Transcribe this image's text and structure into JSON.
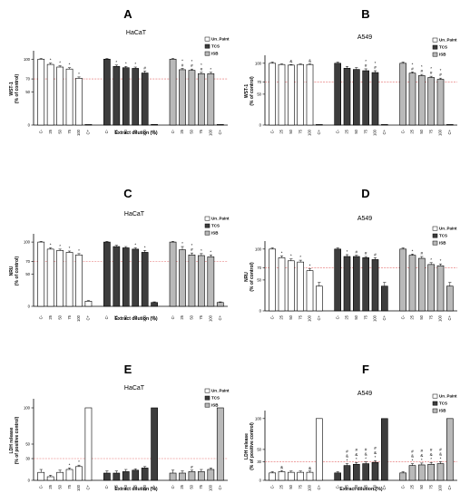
{
  "colors": {
    "Un_Paint": "#ffffff",
    "TCS": "#3d3d3d",
    "ISB": "#b9b9b9",
    "threshold_line": "#e36a6a",
    "axis": "#000000"
  },
  "chart_data": [
    {
      "type": "bar",
      "letter": "A",
      "title": "HaCaT",
      "ylabel_lines": [
        "WST-1",
        "(% of control)"
      ],
      "xlabel": "Extract dilution (%)",
      "categories": [
        "C-",
        "25",
        "50",
        "75",
        "100",
        "C+"
      ],
      "yticks": [
        0,
        50,
        70,
        100
      ],
      "ylim": [
        0,
        110
      ],
      "threshold": 70,
      "legend": [
        "Un_Paint",
        "TCS",
        "ISB"
      ],
      "series": [
        {
          "name": "Un_Paint",
          "values": [
            100,
            92,
            88,
            85,
            71,
            1
          ],
          "errors": [
            1,
            2,
            2,
            2,
            2,
            0
          ],
          "marks": [
            "",
            "*",
            "*",
            "*",
            "*",
            ""
          ]
        },
        {
          "name": "TCS",
          "values": [
            100,
            89,
            87,
            86,
            79,
            1
          ],
          "errors": [
            1,
            2,
            2,
            2,
            3,
            0
          ],
          "marks": [
            "",
            "*",
            "*",
            "*",
            "#",
            ""
          ]
        },
        {
          "name": "ISB",
          "values": [
            100,
            84,
            83,
            78,
            78,
            1
          ],
          "errors": [
            1,
            2,
            2,
            2,
            2,
            0
          ],
          "marks": [
            "",
            "*\n#",
            "*\n#",
            "*\n#",
            "*",
            ""
          ]
        }
      ]
    },
    {
      "type": "bar",
      "letter": "B",
      "title": "A549",
      "ylabel_lines": [
        "WST-1",
        "(% of control)"
      ],
      "xlabel": "",
      "categories": [
        "C-",
        "25",
        "50",
        "75",
        "100",
        "C+"
      ],
      "yticks": [
        0,
        50,
        70,
        100
      ],
      "ylim": [
        0,
        110
      ],
      "threshold": 70,
      "legend": [
        "Un_Paint",
        "TCS",
        "ISB"
      ],
      "series": [
        {
          "name": "Un_Paint",
          "values": [
            100,
            98,
            97,
            98,
            98,
            0
          ],
          "errors": [
            2,
            1,
            1,
            1,
            1,
            0
          ],
          "marks": [
            "",
            "",
            "&",
            "",
            "&",
            ""
          ]
        },
        {
          "name": "TCS",
          "values": [
            100,
            92,
            90,
            88,
            85,
            0
          ],
          "errors": [
            2,
            3,
            3,
            3,
            3,
            0
          ],
          "marks": [
            "",
            "",
            "",
            "*\n#",
            "*\n#",
            ""
          ]
        },
        {
          "name": "ISB",
          "values": [
            100,
            84,
            80,
            77,
            74,
            0
          ],
          "errors": [
            2,
            2,
            2,
            2,
            2,
            0
          ],
          "marks": [
            "",
            "*\n#",
            "*\n#",
            "*\n#",
            "*\n#",
            ""
          ]
        }
      ]
    },
    {
      "type": "bar",
      "letter": "C",
      "title": "HaCaT",
      "ylabel_lines": [
        "NRU",
        "(% of control)"
      ],
      "xlabel": "Extract dilution (%)",
      "categories": [
        "C-",
        "25",
        "50",
        "75",
        "100",
        "C+"
      ],
      "yticks": [
        0,
        50,
        70,
        100
      ],
      "ylim": [
        0,
        110
      ],
      "threshold": 70,
      "legend": [
        "Un_Paint",
        "TCS",
        "ISB"
      ],
      "series": [
        {
          "name": "Un_Paint",
          "values": [
            100,
            89,
            87,
            84,
            80,
            8
          ],
          "errors": [
            1,
            2,
            2,
            2,
            2,
            1
          ],
          "marks": [
            "",
            "*",
            "*",
            "*",
            "*",
            ""
          ]
        },
        {
          "name": "TCS",
          "values": [
            100,
            93,
            91,
            89,
            84,
            6
          ],
          "errors": [
            1,
            2,
            2,
            2,
            3,
            1
          ],
          "marks": [
            "",
            "",
            "",
            "*",
            "*",
            ""
          ]
        },
        {
          "name": "ISB",
          "values": [
            100,
            88,
            80,
            79,
            77,
            6
          ],
          "errors": [
            1,
            5,
            3,
            3,
            3,
            1
          ],
          "marks": [
            "",
            "*",
            "*\n#",
            "*",
            "*",
            ""
          ]
        }
      ]
    },
    {
      "type": "bar",
      "letter": "D",
      "title": "A549",
      "ylabel_lines": [
        "NRU",
        "(% of control)"
      ],
      "xlabel": "",
      "categories": [
        "C-",
        "25",
        "50",
        "75",
        "100",
        "C+"
      ],
      "yticks": [
        0,
        50,
        70,
        100
      ],
      "ylim": [
        0,
        110
      ],
      "threshold": 70,
      "legend": [
        "Un_Paint",
        "TCS",
        "ISB"
      ],
      "series": [
        {
          "name": "Un_Paint",
          "values": [
            100,
            86,
            81,
            79,
            65,
            40
          ],
          "errors": [
            2,
            3,
            3,
            3,
            3,
            6
          ],
          "marks": [
            "",
            "*",
            "*",
            "*",
            "*",
            ""
          ]
        },
        {
          "name": "TCS",
          "values": [
            100,
            88,
            88,
            86,
            83,
            40
          ],
          "errors": [
            2,
            3,
            2,
            2,
            3,
            6
          ],
          "marks": [
            "",
            "*",
            "#",
            "#",
            "#",
            ""
          ]
        },
        {
          "name": "ISB",
          "values": [
            100,
            90,
            85,
            75,
            73,
            40
          ],
          "errors": [
            2,
            2,
            3,
            3,
            3,
            6
          ],
          "marks": [
            "",
            "*",
            "#",
            "*",
            "*",
            ""
          ]
        }
      ]
    },
    {
      "type": "bar",
      "letter": "E",
      "title": "HaCaT",
      "ylabel_lines": [
        "LDH release",
        "(% of positive control)"
      ],
      "xlabel": "Extract dilution (%)",
      "categories": [
        "C-",
        "25",
        "50",
        "75",
        "100",
        "C+"
      ],
      "yticks": [
        0,
        30,
        50,
        100
      ],
      "ylim": [
        0,
        110
      ],
      "threshold": 30,
      "legend": [
        "Un_Paint",
        "TCS",
        "ISB"
      ],
      "series": [
        {
          "name": "Un_Paint",
          "values": [
            11,
            5,
            11,
            15,
            19,
            100
          ],
          "errors": [
            4,
            2,
            3,
            2,
            2,
            0
          ],
          "marks": [
            "",
            "",
            "",
            "*",
            "*",
            ""
          ]
        },
        {
          "name": "TCS",
          "values": [
            10,
            10,
            12,
            14,
            17,
            100
          ],
          "errors": [
            3,
            3,
            3,
            2,
            2,
            0
          ],
          "marks": [
            "",
            "",
            "",
            "",
            "",
            ""
          ]
        },
        {
          "name": "ISB",
          "values": [
            10,
            10,
            12,
            12,
            15,
            100
          ],
          "errors": [
            4,
            3,
            2,
            3,
            2,
            0
          ],
          "marks": [
            "",
            "",
            "#",
            "",
            "",
            ""
          ]
        }
      ]
    },
    {
      "type": "bar",
      "letter": "F",
      "title": "A549",
      "ylabel_lines": [
        "LDH release",
        "(% of positive control)"
      ],
      "xlabel": "Extract dilution (%)",
      "categories": [
        "C-",
        "25",
        "50",
        "75",
        "100",
        "C+"
      ],
      "yticks": [
        0,
        30,
        50,
        100
      ],
      "ylim": [
        0,
        110
      ],
      "threshold": 30,
      "legend": [
        "Un_Paint",
        "TCS",
        "ISB"
      ],
      "series": [
        {
          "name": "Un_Paint",
          "values": [
            12,
            14,
            13,
            13,
            13,
            100
          ],
          "errors": [
            2,
            2,
            2,
            2,
            2,
            0
          ],
          "marks": [
            "",
            "&",
            "",
            "",
            "&",
            ""
          ]
        },
        {
          "name": "TCS",
          "values": [
            12,
            24,
            26,
            27,
            29,
            100
          ],
          "errors": [
            2,
            3,
            3,
            3,
            3,
            0
          ],
          "marks": [
            "",
            "#\n&\n*",
            "#\n&\n*",
            "#\n&\n*",
            "#\n&\n*",
            ""
          ]
        },
        {
          "name": "ISB",
          "values": [
            12,
            24,
            25,
            26,
            27,
            100
          ],
          "errors": [
            2,
            3,
            3,
            3,
            3,
            0
          ],
          "marks": [
            "",
            "#\n&\n*",
            "#\n&\n*",
            "#\n&\n*",
            "#\n&\n*",
            ""
          ]
        }
      ]
    }
  ]
}
